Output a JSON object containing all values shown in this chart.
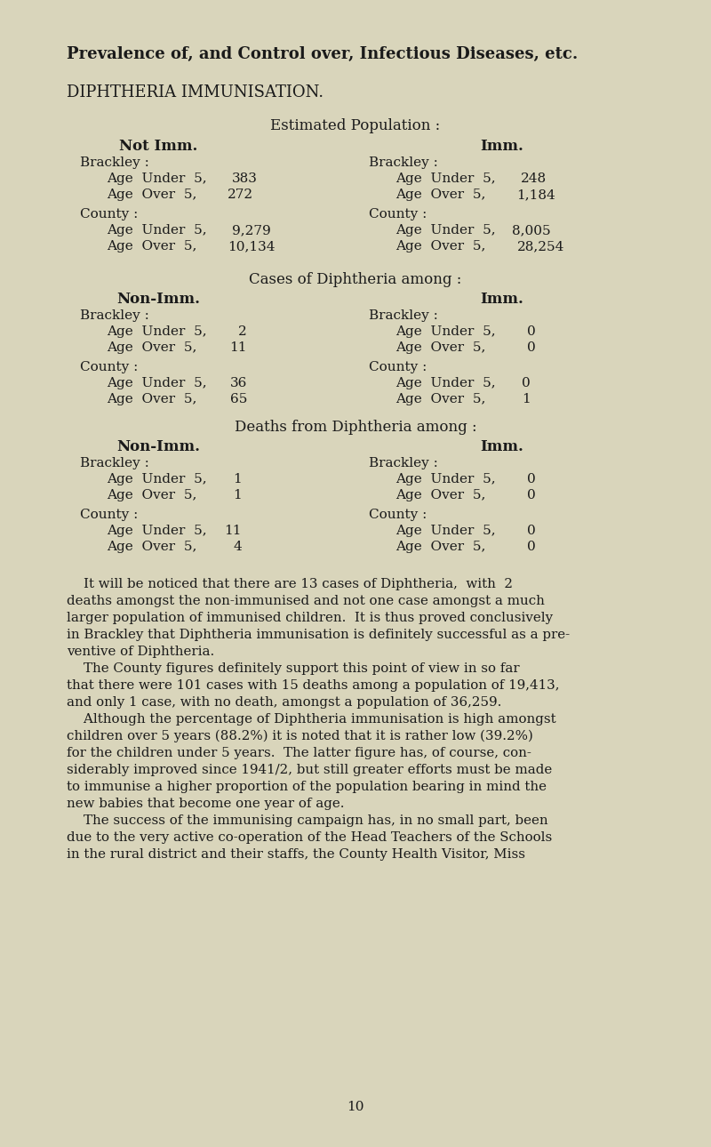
{
  "bg_color": "#d9d5bb",
  "text_color": "#1a1a1a",
  "title1": "Prevalence of, and Control over, Infectious Diseases, etc.",
  "title2": "DIPHTHERIA IMMUNISATION.",
  "section1_header": "Estimated Population :",
  "section2_header": "Cases of Diphtheria among :",
  "section3_header": "Deaths from Diphtheria among :",
  "col_left_header": "Not Imm.",
  "col_right_header": "Imm.",
  "col_left_header2": "Non-Imm.",
  "col_right_header2": "Imm.",
  "paragraphs": [
    "    It will be noticed that there are 13 cases of Diphtheria,  with  2",
    "deaths amongst the non-immunised and not one case amongst a much",
    "larger population of immunised children.  It is thus proved conclusively",
    "in Brackley that Diphtheria immunisation is definitely successful as a pre-",
    "ventive of Diphtheria.",
    "    The County figures definitely support this point of view in so far",
    "that there were 101 cases with 15 deaths among a population of 19,413,",
    "and only 1 case, with no death, amongst a population of 36,259.",
    "    Although the percentage of Diphtheria immunisation is high amongst",
    "children over 5 years (88.2%) it is noted that it is rather low (39.2%)",
    "for the children under 5 years.  The latter figure has, of course, con-",
    "siderably improved since 1941/2, but still greater efforts must be made",
    "to immunise a higher proportion of the population bearing in mind the",
    "new babies that become one year of age.",
    "    The success of the immunising campaign has, in no small part, been",
    "due to the very active co-operation of the Head Teachers of the Schools",
    "in the rural district and their staffs, the County Health Visitor, Miss"
  ],
  "page_number": "10"
}
